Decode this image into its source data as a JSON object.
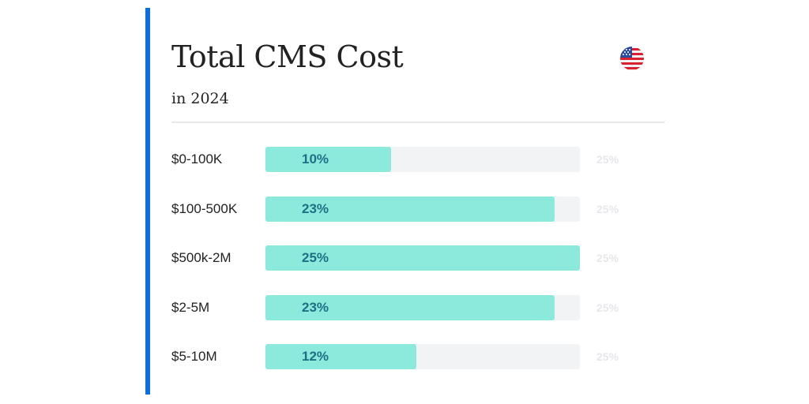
{
  "title": "Total CMS Cost",
  "subtitle": "in 2024",
  "flag_icon": "us-flag-icon",
  "colors": {
    "accent": "#0b6fe0",
    "bar_fill": "#8ceadc",
    "bar_track": "#f2f3f5",
    "bar_text": "#1e6f84"
  },
  "chart_data": {
    "type": "bar",
    "orientation": "horizontal",
    "title": "Total CMS Cost",
    "subtitle": "in 2024",
    "categories": [
      "$0-100K",
      "$100-500K",
      "$500k-2M",
      "$2-5M",
      "$5-10M"
    ],
    "values": [
      10,
      23,
      25,
      23,
      12
    ],
    "value_labels": [
      "10%",
      "23%",
      "25%",
      "23%",
      "12%"
    ],
    "max_value": 25,
    "max_labels": [
      "25%",
      "25%",
      "25%",
      "25%",
      "25%"
    ],
    "xlim": [
      0,
      25
    ],
    "unit": "%",
    "grid": false,
    "legend": "none"
  }
}
